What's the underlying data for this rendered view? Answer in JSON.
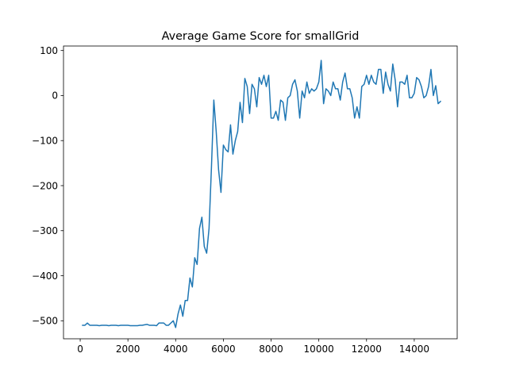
{
  "chart_data": {
    "type": "line",
    "title": "Average Game Score for smallGrid",
    "xlabel": "",
    "ylabel": "",
    "xlim": [
      -700,
      15800
    ],
    "ylim": [
      -540,
      110
    ],
    "xticks": [
      0,
      2000,
      4000,
      6000,
      8000,
      10000,
      12000,
      14000
    ],
    "xtick_labels": [
      "0",
      "2000",
      "4000",
      "6000",
      "8000",
      "10000",
      "12000",
      "14000"
    ],
    "yticks": [
      -500,
      -400,
      -300,
      -200,
      -100,
      0,
      100
    ],
    "ytick_labels": [
      "−500",
      "−400",
      "−300",
      "−200",
      "−100",
      "0",
      "100"
    ],
    "grid": false,
    "legend": "none",
    "series": [
      {
        "color": "#1f77b4",
        "x": [
          100,
          200,
          300,
          400,
          500,
          600,
          700,
          800,
          900,
          1000,
          1100,
          1200,
          1300,
          1400,
          1500,
          1600,
          1700,
          1800,
          1900,
          2000,
          2100,
          2200,
          2300,
          2400,
          2500,
          2600,
          2700,
          2800,
          2900,
          3000,
          3100,
          3200,
          3300,
          3400,
          3500,
          3600,
          3700,
          3800,
          3900,
          4000,
          4100,
          4200,
          4300,
          4400,
          4500,
          4600,
          4700,
          4800,
          4900,
          5000,
          5100,
          5200,
          5300,
          5400,
          5500,
          5600,
          5700,
          5800,
          5900,
          6000,
          6100,
          6200,
          6300,
          6400,
          6500,
          6600,
          6700,
          6800,
          6900,
          7000,
          7100,
          7200,
          7300,
          7400,
          7500,
          7600,
          7700,
          7800,
          7900,
          8000,
          8100,
          8200,
          8300,
          8400,
          8500,
          8600,
          8700,
          8800,
          8900,
          9000,
          9100,
          9200,
          9300,
          9400,
          9500,
          9600,
          9700,
          9800,
          9900,
          10000,
          10100,
          10200,
          10300,
          10400,
          10500,
          10600,
          10700,
          10800,
          10900,
          11000,
          11100,
          11200,
          11300,
          11400,
          11500,
          11600,
          11700,
          11800,
          11900,
          12000,
          12100,
          12200,
          12300,
          12400,
          12500,
          12600,
          12700,
          12800,
          12900,
          13000,
          13100,
          13200,
          13300,
          13400,
          13500,
          13600,
          13700,
          13800,
          13900,
          14000,
          14100,
          14200,
          14300,
          14400,
          14500,
          14600,
          14700,
          14800,
          14900,
          15000,
          15100
        ],
        "y": [
          -510,
          -510,
          -505,
          -510,
          -510,
          -510,
          -510,
          -511,
          -510,
          -510,
          -510,
          -511,
          -510,
          -510,
          -510,
          -511,
          -510,
          -510,
          -510,
          -510,
          -511,
          -511,
          -511,
          -511,
          -510,
          -510,
          -509,
          -508,
          -510,
          -510,
          -510,
          -511,
          -505,
          -505,
          -505,
          -510,
          -510,
          -505,
          -500,
          -515,
          -485,
          -465,
          -490,
          -455,
          -455,
          -405,
          -425,
          -360,
          -375,
          -295,
          -270,
          -335,
          -350,
          -295,
          -160,
          -10,
          -80,
          -165,
          -215,
          -110,
          -120,
          -125,
          -65,
          -130,
          -100,
          -80,
          -15,
          -60,
          38,
          20,
          -40,
          25,
          15,
          -25,
          40,
          25,
          45,
          20,
          45,
          -50,
          -50,
          -35,
          -55,
          -10,
          -15,
          -55,
          -5,
          0,
          25,
          35,
          10,
          -50,
          10,
          -5,
          30,
          5,
          15,
          10,
          15,
          30,
          78,
          -18,
          15,
          10,
          0,
          30,
          15,
          15,
          -10,
          30,
          50,
          15,
          15,
          -5,
          -50,
          -25,
          -50,
          20,
          25,
          45,
          25,
          45,
          30,
          25,
          58,
          58,
          5,
          52,
          25,
          10,
          70,
          35,
          -25,
          30,
          30,
          25,
          45,
          -5,
          -5,
          5,
          40,
          35,
          20,
          -5,
          0,
          20,
          58,
          0,
          22,
          -18,
          -13
        ]
      }
    ]
  }
}
